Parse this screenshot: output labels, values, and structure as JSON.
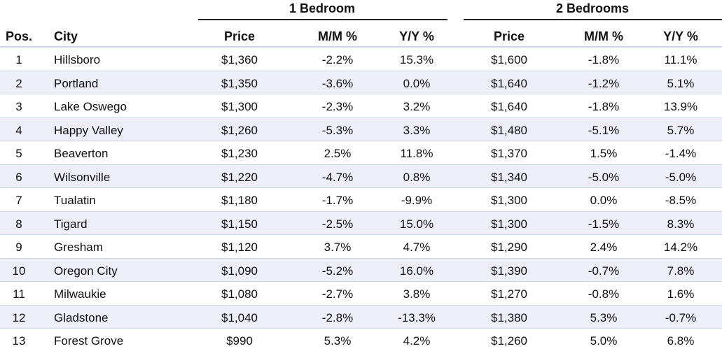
{
  "group_headers": [
    "1 Bedroom",
    "2 Bedrooms"
  ],
  "columns": [
    "Pos.",
    "City",
    "Price",
    "M/M %",
    "Y/Y %",
    "Price",
    "M/M %",
    "Y/Y %"
  ],
  "rows": [
    [
      "1",
      "Hillsboro",
      "$1,360",
      "-2.2%",
      "15.3%",
      "$1,600",
      "-1.8%",
      "11.1%"
    ],
    [
      "2",
      "Portland",
      "$1,350",
      "-3.6%",
      "0.0%",
      "$1,640",
      "-1.2%",
      "5.1%"
    ],
    [
      "3",
      "Lake Oswego",
      "$1,300",
      "-2.3%",
      "3.2%",
      "$1,640",
      "-1.8%",
      "13.9%"
    ],
    [
      "4",
      "Happy Valley",
      "$1,260",
      "-5.3%",
      "3.3%",
      "$1,480",
      "-5.1%",
      "5.7%"
    ],
    [
      "5",
      "Beaverton",
      "$1,230",
      "2.5%",
      "11.8%",
      "$1,370",
      "1.5%",
      "-1.4%"
    ],
    [
      "6",
      "Wilsonville",
      "$1,220",
      "-4.7%",
      "0.8%",
      "$1,340",
      "-5.0%",
      "-5.0%"
    ],
    [
      "7",
      "Tualatin",
      "$1,180",
      "-1.7%",
      "-9.9%",
      "$1,300",
      "0.0%",
      "-8.5%"
    ],
    [
      "8",
      "Tigard",
      "$1,150",
      "-2.5%",
      "15.0%",
      "$1,300",
      "-1.5%",
      "8.3%"
    ],
    [
      "9",
      "Gresham",
      "$1,120",
      "3.7%",
      "4.7%",
      "$1,290",
      "2.4%",
      "14.2%"
    ],
    [
      "10",
      "Oregon City",
      "$1,090",
      "-5.2%",
      "16.0%",
      "$1,390",
      "-0.7%",
      "7.8%"
    ],
    [
      "11",
      "Milwaukie",
      "$1,080",
      "-2.7%",
      "3.8%",
      "$1,270",
      "-0.8%",
      "1.6%"
    ],
    [
      "12",
      "Gladstone",
      "$1,040",
      "-2.8%",
      "-13.3%",
      "$1,380",
      "5.3%",
      "-0.7%"
    ],
    [
      "13",
      "Forest Grove",
      "$990",
      "5.3%",
      "4.2%",
      "$1,260",
      "5.0%",
      "6.8%"
    ]
  ]
}
